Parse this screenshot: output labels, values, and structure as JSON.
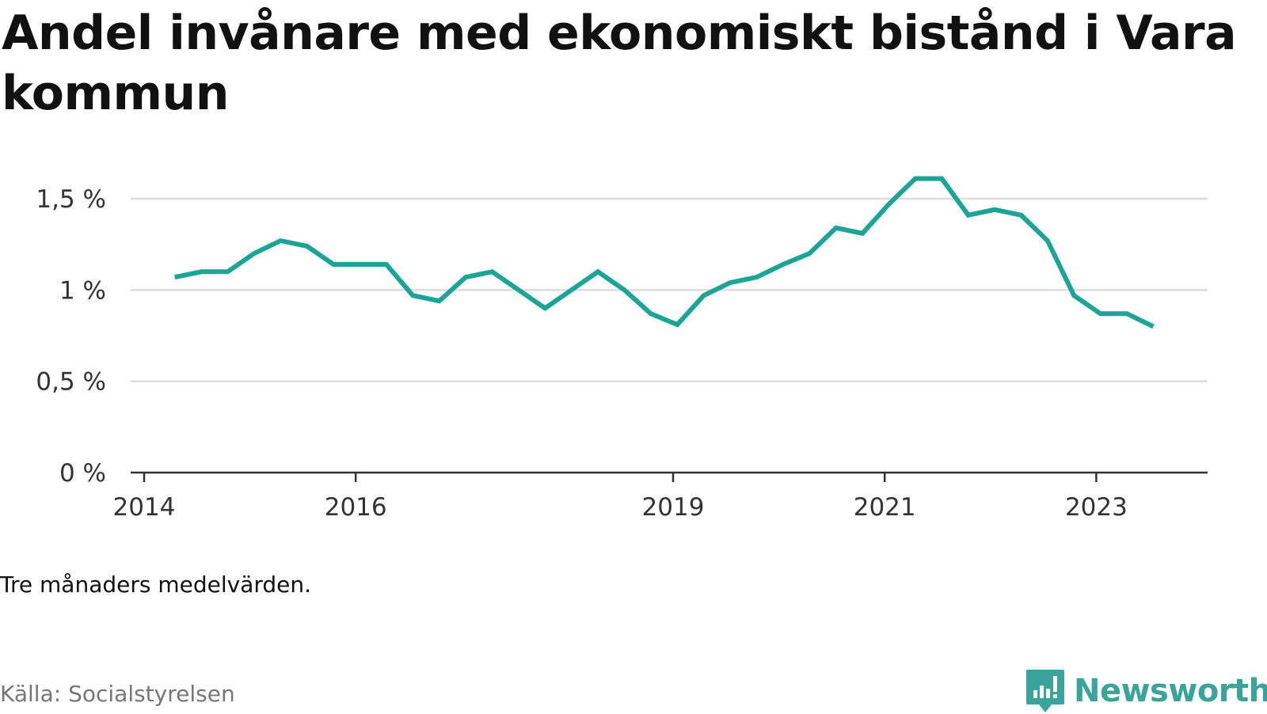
{
  "title": "Andel invånare med ekonomiskt bistånd i Vara kommun",
  "note": "Tre månaders medelvärden.",
  "source": "Källa: Socialstyrelsen",
  "brand": {
    "name": "Newsworthy",
    "icon": "newsworthy-logo-icon",
    "color": "#3aa39a"
  },
  "chart_data": {
    "type": "line",
    "line_color": "#1ca497",
    "grid": true,
    "ylim": [
      0,
      1.6
    ],
    "yticks": [
      {
        "value": 0,
        "label": "0 %"
      },
      {
        "value": 0.5,
        "label": "0,5 %"
      },
      {
        "value": 1,
        "label": "1 %"
      },
      {
        "value": 1.5,
        "label": "1,5 %"
      }
    ],
    "xlim": [
      2014.0,
      2024.0
    ],
    "xticks": [
      {
        "value": 2014,
        "label": "2014"
      },
      {
        "value": 2016,
        "label": "2016"
      },
      {
        "value": 2019,
        "label": "2019"
      },
      {
        "value": 2021,
        "label": "2021"
      },
      {
        "value": 2023,
        "label": "2023"
      }
    ],
    "series": [
      {
        "x": [
          2014.29,
          2014.54,
          2014.79,
          2015.04,
          2015.29,
          2015.54,
          2015.79,
          2016.04,
          2016.29,
          2016.54,
          2016.79,
          2017.04,
          2017.29,
          2017.54,
          2017.79,
          2018.04,
          2018.29,
          2018.54,
          2018.79,
          2019.04,
          2019.29,
          2019.54,
          2019.79,
          2020.04,
          2020.29,
          2020.54,
          2020.79,
          2021.04,
          2021.29,
          2021.54,
          2021.79,
          2022.04,
          2022.29,
          2022.54,
          2022.79,
          2023.04,
          2023.29,
          2023.54
        ],
        "y": [
          1.07,
          1.1,
          1.1,
          1.2,
          1.27,
          1.24,
          1.14,
          1.14,
          1.14,
          0.97,
          0.94,
          1.07,
          1.1,
          1.0,
          0.9,
          1.0,
          1.1,
          1.0,
          0.87,
          0.81,
          0.97,
          1.04,
          1.07,
          1.14,
          1.2,
          1.34,
          1.31,
          1.47,
          1.61,
          1.61,
          1.41,
          1.44,
          1.41,
          1.27,
          0.97,
          0.87,
          0.87,
          0.8
        ]
      }
    ]
  }
}
